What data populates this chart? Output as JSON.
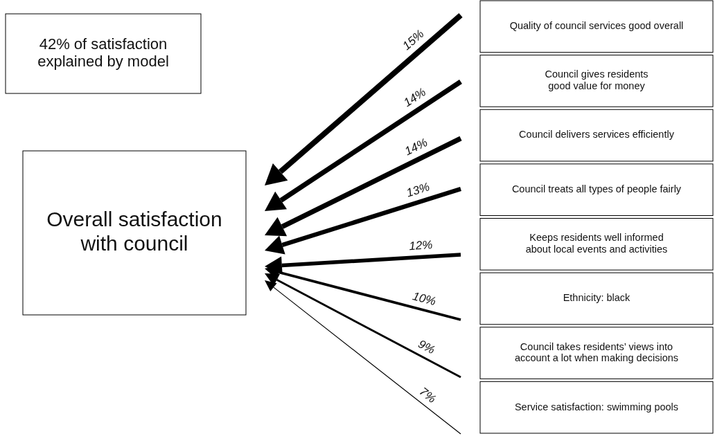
{
  "chart_data": {
    "type": "other",
    "annotations": [
      "42% of satisfaction explained by model",
      "Overall satisfaction with council"
    ],
    "categories": [
      "Quality of council services good overall",
      "Council gives residents good value for money",
      "Council delivers services efficiently",
      "Council treats all types of people fairly",
      "Keeps residents well informed about local events and activities",
      "Ethnicity: black",
      "Council takes residents’ views into account a lot when making decisions",
      "Service satisfaction: swimming pools"
    ],
    "values": [
      15,
      14,
      14,
      13,
      12,
      10,
      9,
      7
    ],
    "value_labels": [
      "15%",
      "14%",
      "14%",
      "13%",
      "12%",
      "10%",
      "9%",
      "7%"
    ]
  }
}
